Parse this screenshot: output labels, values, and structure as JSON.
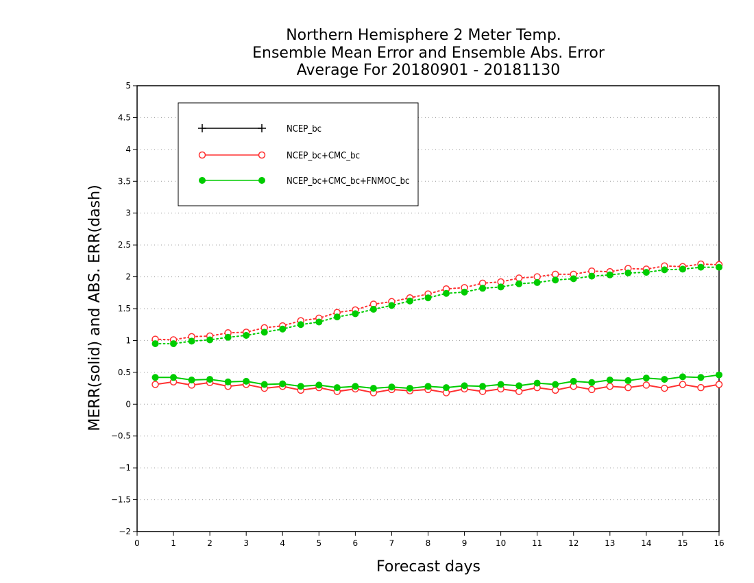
{
  "chart_data": {
    "type": "line",
    "title_lines": [
      "Northern Hemisphere 2 Meter Temp.",
      "Ensemble Mean Error and Ensemble Abs. Error",
      "Average For 20180901 - 20181130"
    ],
    "xlabel": "Forecast days",
    "ylabel": "MERR(solid) and ABS. ERR(dash)",
    "xlim": [
      0,
      16
    ],
    "ylim": [
      -2,
      5
    ],
    "xticks": [
      0,
      1,
      2,
      3,
      4,
      5,
      6,
      7,
      8,
      9,
      10,
      11,
      12,
      13,
      14,
      15,
      16
    ],
    "yticks": [
      -2,
      -1.5,
      -1,
      -0.5,
      0,
      0.5,
      1,
      1.5,
      2,
      2.5,
      3,
      3.5,
      4,
      4.5,
      5
    ],
    "grid": "horizontal dotted",
    "legend_position": "top-left",
    "x": [
      0.5,
      1,
      1.5,
      2,
      2.5,
      3,
      3.5,
      4,
      4.5,
      5,
      5.5,
      6,
      6.5,
      7,
      7.5,
      8,
      8.5,
      9,
      9.5,
      10,
      10.5,
      11,
      11.5,
      12,
      12.5,
      13,
      13.5,
      14,
      14.5,
      15,
      15.5,
      16
    ],
    "series": [
      {
        "name": "NCEP_bc",
        "color": "#000000",
        "marker": "plus",
        "merr": [],
        "abs_err": []
      },
      {
        "name": "NCEP_bc+CMC_bc",
        "color": "#ff3030",
        "marker": "open-circle",
        "merr": [
          0.31,
          0.35,
          0.3,
          0.34,
          0.28,
          0.31,
          0.25,
          0.28,
          0.22,
          0.26,
          0.2,
          0.24,
          0.18,
          0.23,
          0.21,
          0.23,
          0.18,
          0.24,
          0.2,
          0.24,
          0.2,
          0.26,
          0.22,
          0.28,
          0.23,
          0.28,
          0.26,
          0.3,
          0.25,
          0.31,
          0.26,
          0.31
        ],
        "abs_err": [
          1.02,
          1.01,
          1.06,
          1.07,
          1.12,
          1.13,
          1.2,
          1.23,
          1.31,
          1.35,
          1.44,
          1.48,
          1.57,
          1.61,
          1.67,
          1.73,
          1.81,
          1.83,
          1.9,
          1.92,
          1.98,
          2.0,
          2.04,
          2.04,
          2.09,
          2.08,
          2.13,
          2.12,
          2.17,
          2.16,
          2.2,
          2.19
        ]
      },
      {
        "name": "NCEP_bc+CMC_bc+FNMOC_bc",
        "color": "#00cc00",
        "marker": "filled-circle",
        "merr": [
          0.42,
          0.42,
          0.38,
          0.39,
          0.35,
          0.36,
          0.31,
          0.32,
          0.28,
          0.3,
          0.26,
          0.28,
          0.25,
          0.27,
          0.25,
          0.28,
          0.26,
          0.29,
          0.28,
          0.31,
          0.29,
          0.33,
          0.31,
          0.36,
          0.34,
          0.38,
          0.37,
          0.41,
          0.39,
          0.43,
          0.42,
          0.46
        ],
        "abs_err": [
          0.95,
          0.95,
          0.99,
          1.01,
          1.05,
          1.08,
          1.13,
          1.18,
          1.25,
          1.29,
          1.37,
          1.42,
          1.49,
          1.55,
          1.62,
          1.67,
          1.74,
          1.76,
          1.82,
          1.84,
          1.89,
          1.91,
          1.95,
          1.97,
          2.01,
          2.03,
          2.06,
          2.07,
          2.11,
          2.12,
          2.15,
          2.15
        ]
      }
    ]
  }
}
